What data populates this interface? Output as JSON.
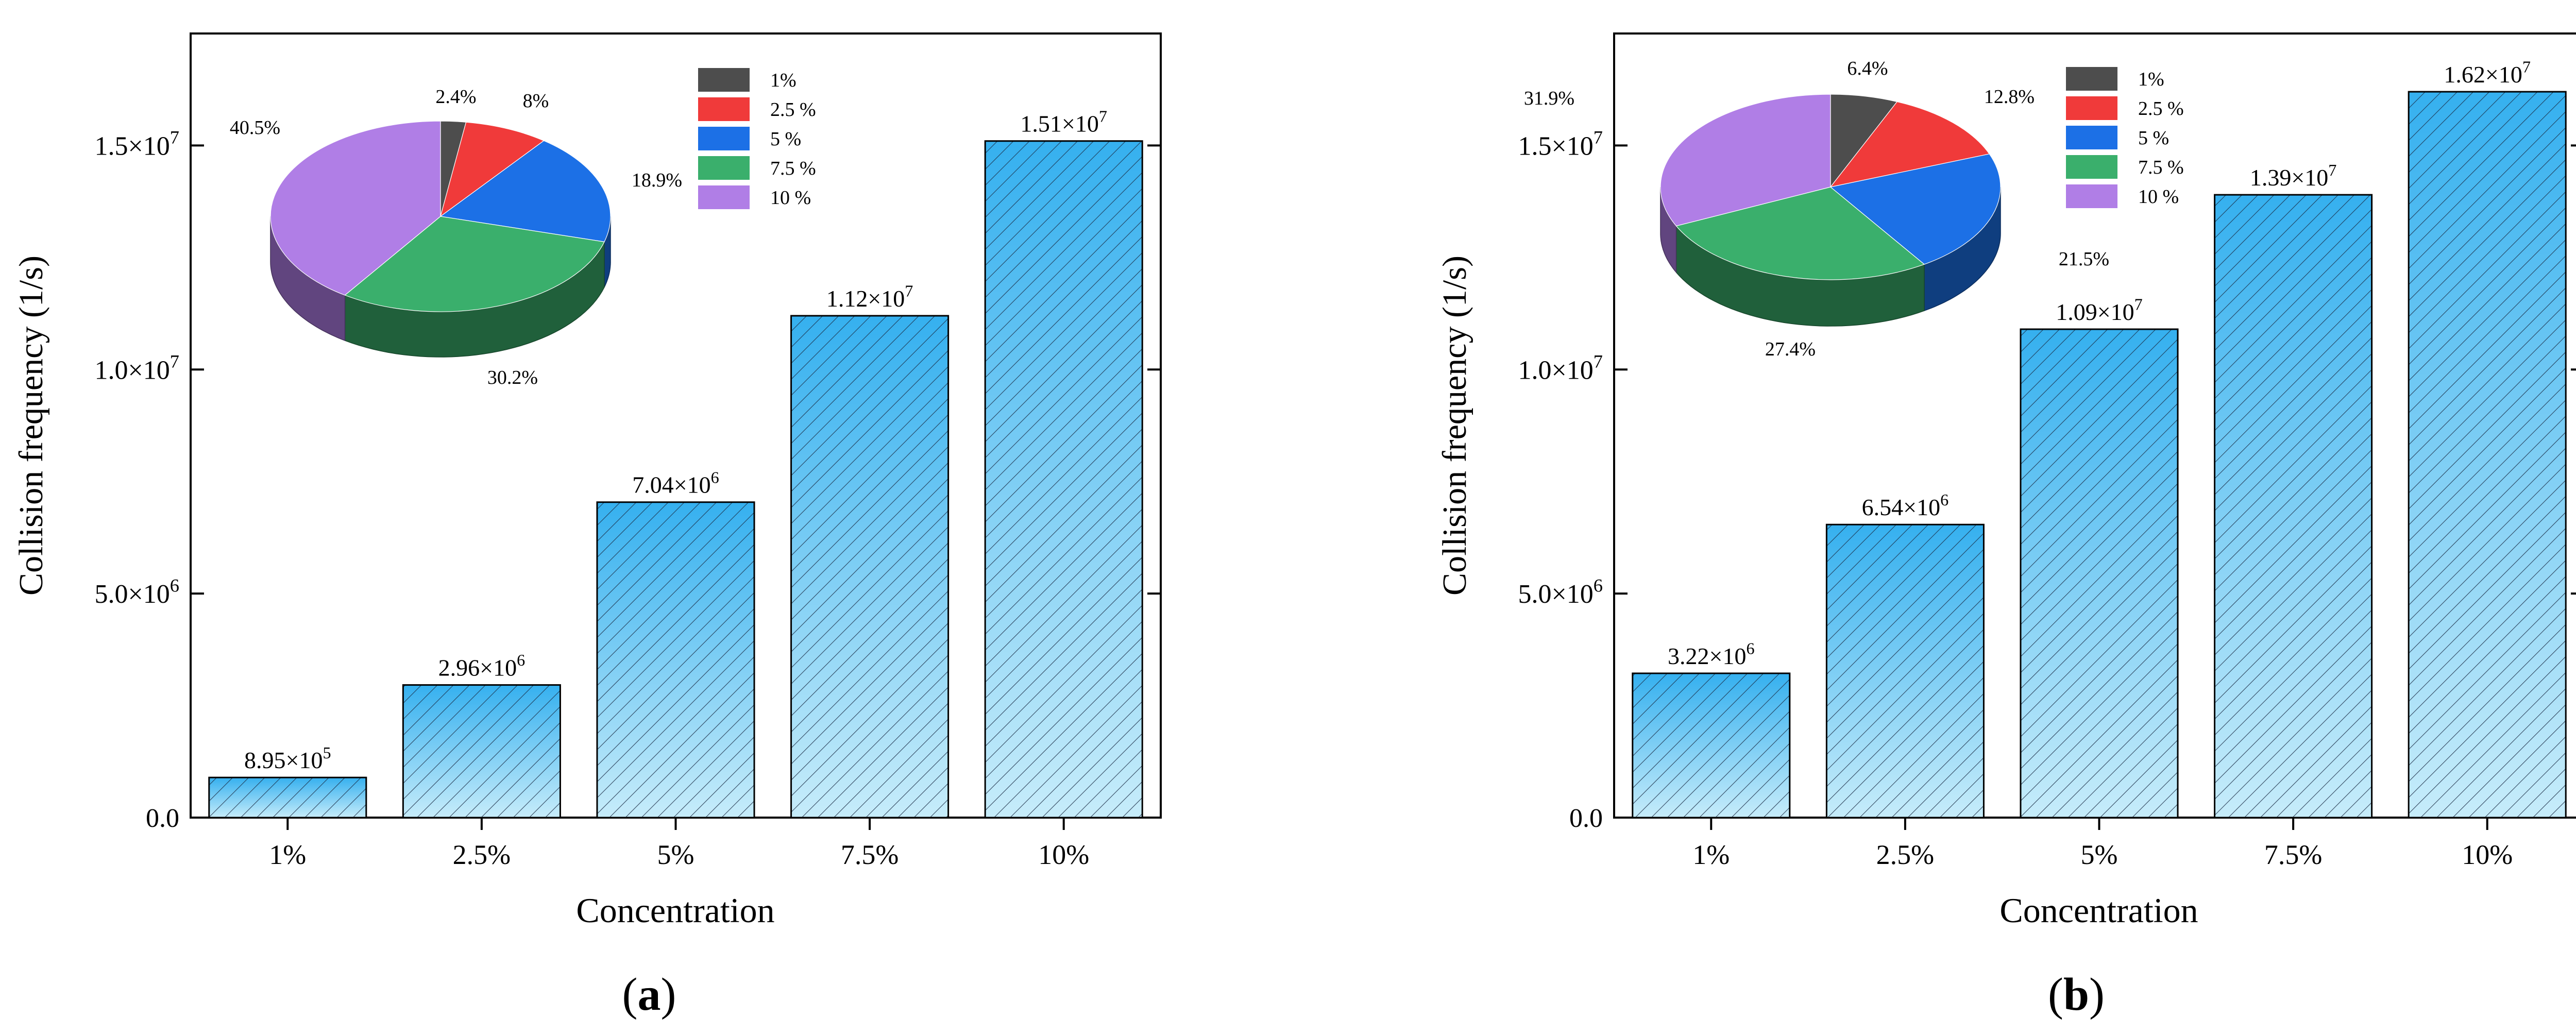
{
  "figure": {
    "panels": [
      {
        "panel_label": "a",
        "chart_data": {
          "type": "bar",
          "categories": [
            "1%",
            "2.5%",
            "5%",
            "7.5%",
            "10%"
          ],
          "values": [
            895000,
            2960000,
            7040000,
            11200000,
            15100000
          ],
          "value_labels": [
            {
              "mantissa": "8.95",
              "exponent": "5"
            },
            {
              "mantissa": "2.96",
              "exponent": "6"
            },
            {
              "mantissa": "7.04",
              "exponent": "6"
            },
            {
              "mantissa": "1.12",
              "exponent": "7"
            },
            {
              "mantissa": "1.51",
              "exponent": "7"
            }
          ],
          "xlabel": "Concentration",
          "ylabel": "Collision frequency (1/s)",
          "ylim": [
            0,
            17500000
          ],
          "yticks": [
            {
              "value": 0,
              "mantissa": "0.0",
              "exponent": ""
            },
            {
              "value": 5000000,
              "mantissa": "5.0",
              "exponent": "6"
            },
            {
              "value": 10000000,
              "mantissa": "1.0",
              "exponent": "7"
            },
            {
              "value": 15000000,
              "mantissa": "1.5",
              "exponent": "7"
            }
          ],
          "bar_style": "hatched gradient blue",
          "inset_pie": {
            "type": "pie",
            "labels": [
              "1%",
              "2.5 %",
              "5 %",
              "7.5 %",
              "10 %"
            ],
            "values": [
              2.4,
              8,
              18.9,
              30.2,
              40.5
            ],
            "value_labels": [
              "2.4%",
              "8%",
              "18.9%",
              "30.2%",
              "40.5%"
            ],
            "colors": [
              "#4d4d4d",
              "#f03a3a",
              "#1c70e6",
              "#3aaf6c",
              "#b07ee6"
            ],
            "style": "3d"
          }
        }
      },
      {
        "panel_label": "b",
        "chart_data": {
          "type": "bar",
          "categories": [
            "1%",
            "2.5%",
            "5%",
            "7.5%",
            "10%"
          ],
          "values": [
            3220000,
            6540000,
            10900000,
            13900000,
            16200000
          ],
          "value_labels": [
            {
              "mantissa": "3.22",
              "exponent": "6"
            },
            {
              "mantissa": "6.54",
              "exponent": "6"
            },
            {
              "mantissa": "1.09",
              "exponent": "7"
            },
            {
              "mantissa": "1.39",
              "exponent": "7"
            },
            {
              "mantissa": "1.62",
              "exponent": "7"
            }
          ],
          "xlabel": "Concentration",
          "ylabel": "Collision frequency (1/s)",
          "ylim": [
            0,
            17500000
          ],
          "yticks": [
            {
              "value": 0,
              "mantissa": "0.0",
              "exponent": ""
            },
            {
              "value": 5000000,
              "mantissa": "5.0",
              "exponent": "6"
            },
            {
              "value": 10000000,
              "mantissa": "1.0",
              "exponent": "7"
            },
            {
              "value": 15000000,
              "mantissa": "1.5",
              "exponent": "7"
            }
          ],
          "bar_style": "hatched gradient blue",
          "inset_pie": {
            "type": "pie",
            "labels": [
              "1%",
              "2.5 %",
              "5 %",
              "7.5 %",
              "10 %"
            ],
            "values": [
              6.4,
              12.8,
              21.5,
              27.4,
              31.9
            ],
            "value_labels": [
              "6.4%",
              "12.8%",
              "21.5%",
              "27.4%",
              "31.9%"
            ],
            "colors": [
              "#4d4d4d",
              "#f03a3a",
              "#1c70e6",
              "#3aaf6c",
              "#b07ee6"
            ],
            "style": "3d"
          }
        }
      }
    ]
  }
}
